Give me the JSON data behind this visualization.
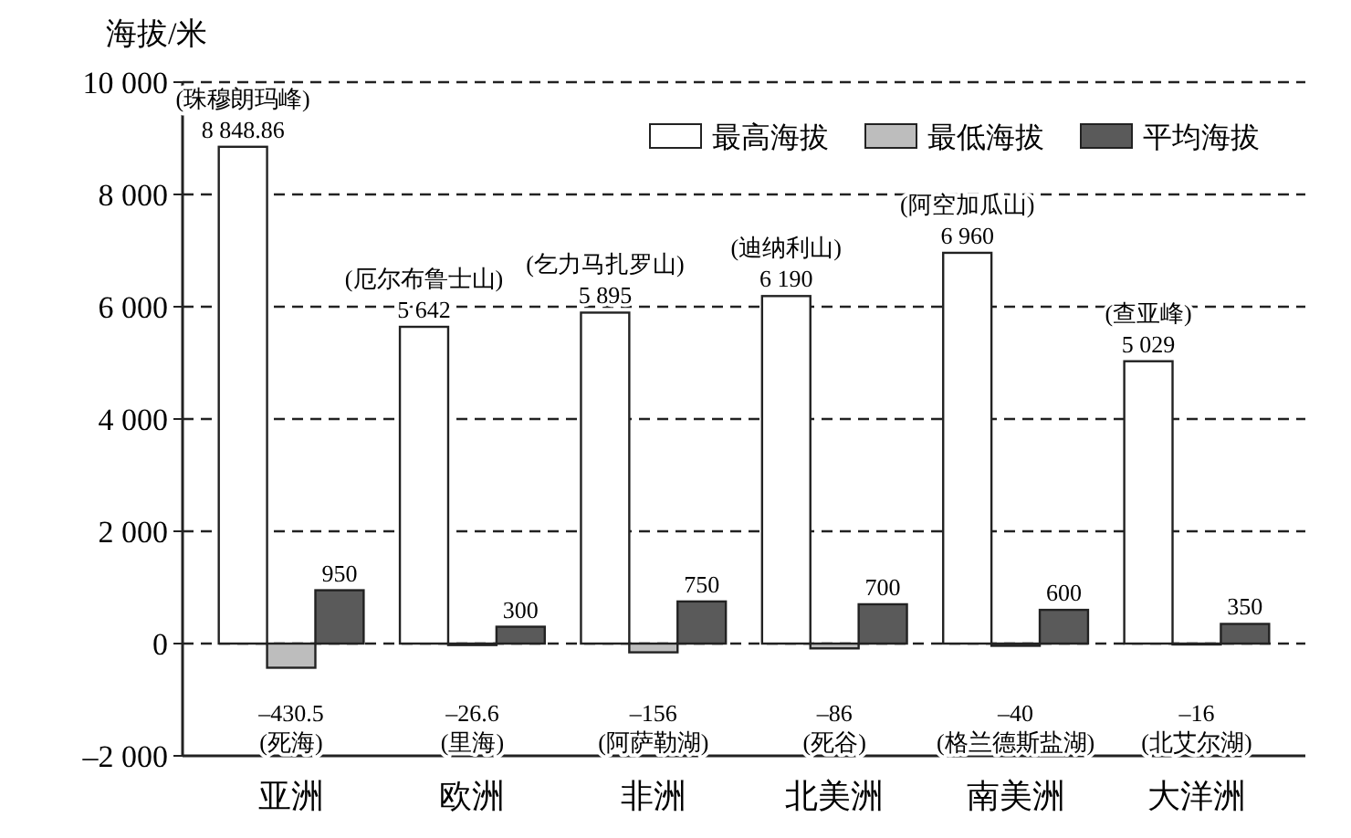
{
  "chart_data": {
    "type": "bar",
    "ylabel": "海拔/米",
    "categories": [
      "亚洲",
      "欧洲",
      "非洲",
      "北美洲",
      "南美洲",
      "大洋洲"
    ],
    "series": [
      {
        "name": "最高海拔",
        "color": "#ffffff",
        "values": [
          8848.86,
          5642,
          5895,
          6190,
          6960,
          5029
        ],
        "value_labels": [
          "8 848.86",
          "5 642",
          "5 895",
          "6 190",
          "6 960",
          "5 029"
        ]
      },
      {
        "name": "最低海拔",
        "color": "#bdbdbd",
        "values": [
          -430.5,
          -26.6,
          -156,
          -86,
          -40,
          -16
        ],
        "value_labels": [
          "–430.5",
          "–26.6",
          "–156",
          "–86",
          "–40",
          "–16"
        ]
      },
      {
        "name": "平均海拔",
        "color": "#5a5a5a",
        "values": [
          950,
          300,
          750,
          700,
          600,
          350
        ],
        "value_labels": [
          "950",
          "300",
          "750",
          "700",
          "600",
          "350"
        ]
      }
    ],
    "annotations": [
      "(珠穆朗玛峰)",
      "(厄尔布鲁士山)",
      "(乞力马扎罗山)",
      "(迪纳利山)",
      "(阿空加瓜山)",
      "(查亚峰)",
      "(死海)",
      "(里海)",
      "(阿萨勒湖)",
      "(死谷)",
      "(格兰德斯盐湖)",
      "(北艾尔湖)"
    ],
    "ylim": [
      -2000,
      10000
    ],
    "yticks": [
      {
        "value": -2000,
        "label": "–2 000"
      },
      0,
      {
        "value": 2000,
        "label": "2 000"
      },
      {
        "value": 4000,
        "label": "4 000"
      },
      {
        "value": 6000,
        "label": "6 000"
      },
      {
        "value": 8000,
        "label": "8 000"
      },
      {
        "value": 10000,
        "label": "10 000"
      }
    ],
    "grid": "y",
    "legend": "top right"
  }
}
